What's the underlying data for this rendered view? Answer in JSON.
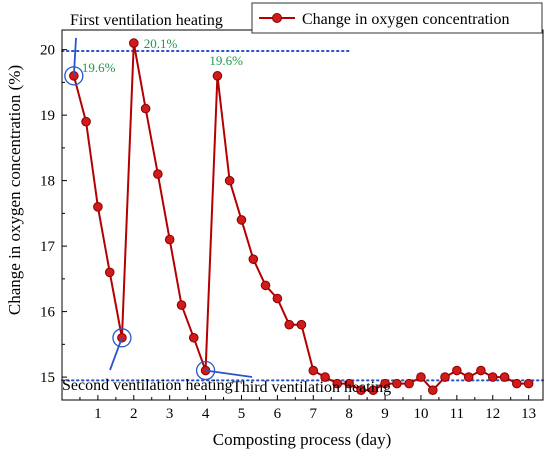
{
  "chart_data": {
    "type": "line",
    "xlabel": "Composting process (day)",
    "ylabel": "Change in oxygen concentration (%)",
    "xlim": [
      0,
      13.4
    ],
    "ylim": [
      14.65,
      20.3
    ],
    "xticks": [
      "1",
      "2",
      "3",
      "4",
      "5",
      "6",
      "7",
      "8",
      "9",
      "10",
      "11",
      "12",
      "13"
    ],
    "yticks": [
      "15",
      "16",
      "17",
      "18",
      "19",
      "20"
    ],
    "legend": {
      "position": "top-right",
      "label": "Change in oxygen concentration"
    },
    "series": [
      {
        "name": "Change in oxygen concentration",
        "color": "#b30000",
        "x": [
          0.33,
          0.67,
          1.0,
          1.33,
          1.67,
          2.0,
          2.33,
          2.67,
          3.0,
          3.33,
          3.67,
          4.0,
          4.33,
          4.67,
          5.0,
          5.33,
          5.67,
          6.0,
          6.33,
          6.67,
          7.0,
          7.33,
          7.67,
          8.0,
          8.33,
          8.67,
          9.0,
          9.33,
          9.67,
          10.0,
          10.33,
          10.67,
          11.0,
          11.33,
          11.67,
          12.0,
          12.33,
          12.67,
          13.0
        ],
        "y": [
          19.6,
          18.9,
          17.6,
          16.6,
          15.6,
          20.1,
          19.1,
          18.1,
          17.1,
          16.1,
          15.6,
          15.1,
          19.6,
          18.0,
          17.4,
          16.8,
          16.4,
          16.2,
          15.8,
          15.8,
          15.1,
          15.0,
          14.9,
          14.9,
          14.8,
          14.8,
          14.9,
          14.9,
          14.9,
          15.0,
          14.8,
          15.0,
          15.1,
          15.0,
          15.1,
          15.0,
          15.0,
          14.9,
          14.9
        ]
      }
    ],
    "reference_lines": [
      {
        "y": 19.98,
        "x_range": [
          0,
          8
        ],
        "color": "#2a55c8",
        "style": "dotted"
      },
      {
        "y": 14.95,
        "x_range": [
          0,
          13.4
        ],
        "color": "#2a55c8",
        "style": "dotted"
      }
    ],
    "value_labels": [
      {
        "text": "19.6%",
        "x": 0.33,
        "y": 19.6,
        "color": "#1f9a4a"
      },
      {
        "text": "20.1%",
        "x": 2.0,
        "y": 20.1,
        "color": "#1f9a4a"
      },
      {
        "text": "19.6%",
        "x": 4.33,
        "y": 19.6,
        "color": "#1f9a4a"
      }
    ],
    "annotations": [
      {
        "text": "First ventilation heating",
        "target_x": 0.33,
        "target_y": 19.6,
        "color": "#2a55c8"
      },
      {
        "text": "Second ventilation heating",
        "target_x": 1.67,
        "target_y": 15.6,
        "color": "#2a55c8"
      },
      {
        "text": "Third ventilation heating",
        "target_x": 4.0,
        "target_y": 15.1,
        "color": "#2a55c8"
      }
    ],
    "grid": false
  }
}
